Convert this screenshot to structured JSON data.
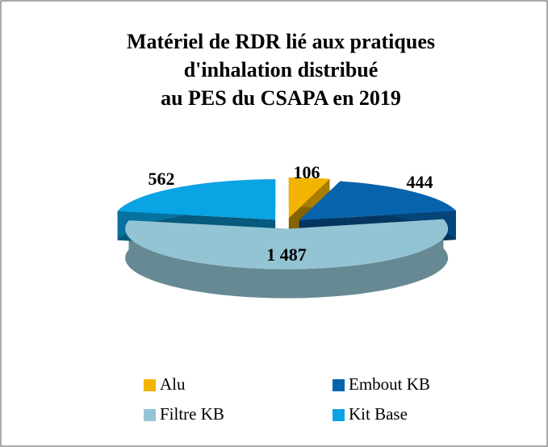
{
  "chart_data": {
    "type": "pie3d",
    "title": [
      "Matériel de RDR lié aux pratiques",
      "d'inhalation distribué",
      "au PES du CSAPA en 2019"
    ],
    "categories": [
      "Alu",
      "Embout KB",
      "Filtre KB",
      "Kit Base"
    ],
    "values": [
      106,
      444,
      1487,
      562
    ],
    "value_labels": [
      "106",
      "444",
      "1 487",
      "562"
    ],
    "colors": [
      "#f2b400",
      "#0863ad",
      "#93c4d4",
      "#0aa3e3"
    ],
    "legend": "bottom"
  }
}
